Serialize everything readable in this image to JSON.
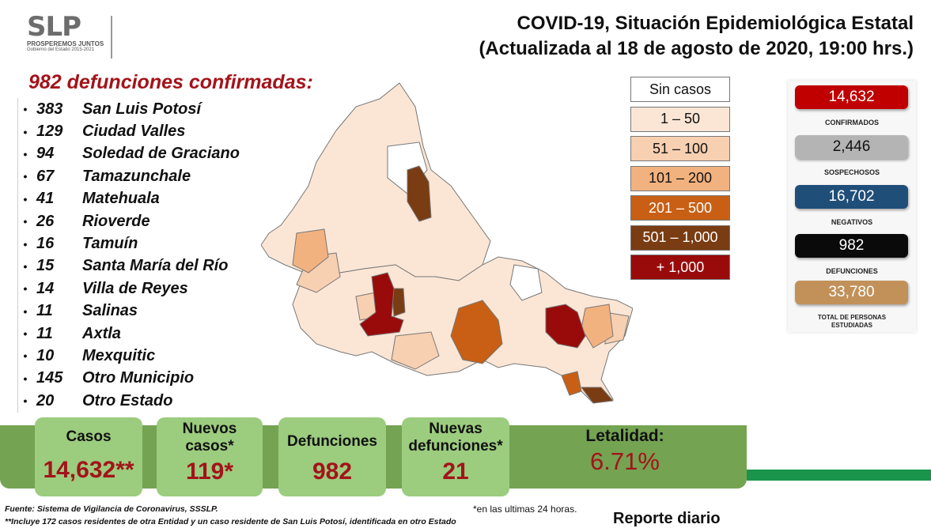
{
  "logo": {
    "mark": "SLP",
    "tagline": "PROSPEREMOS JUNTOS",
    "sub": "Gobierno del Estado 2015-2021"
  },
  "title": {
    "line1": "COVID-19, Situación Epidemiológica Estatal",
    "line2": "(Actualizada al 18 de agosto de 2020, 19:00 hrs.)"
  },
  "deaths_heading": "982 defunciones confirmadas:",
  "deaths_list": [
    {
      "num": "383",
      "name": "San Luis Potosí"
    },
    {
      "num": "129",
      "name": "Ciudad Valles"
    },
    {
      "num": "94",
      "name": "Soledad de Graciano"
    },
    {
      "num": "67",
      "name": "Tamazunchale"
    },
    {
      "num": "41",
      "name": "Matehuala"
    },
    {
      "num": "26",
      "name": "Rioverde"
    },
    {
      "num": "16",
      "name": "Tamuín"
    },
    {
      "num": "15",
      "name": "Santa María del Río"
    },
    {
      "num": "14",
      "name": "Villa de Reyes"
    },
    {
      "num": "11",
      "name": "Salinas"
    },
    {
      "num": "11",
      "name": "Axtla"
    },
    {
      "num": "10",
      "name": "Mexquitic"
    },
    {
      "num": "145",
      "name": "Otro Municipio"
    },
    {
      "num": "20",
      "name": "Otro Estado"
    }
  ],
  "legend": [
    {
      "label": "Sin casos",
      "bg": "#ffffff",
      "fg": "#111111"
    },
    {
      "label": "1 – 50",
      "bg": "#fbe6d6",
      "fg": "#111111"
    },
    {
      "label": "51 – 100",
      "bg": "#f7cfb1",
      "fg": "#111111"
    },
    {
      "label": "101 – 200",
      "bg": "#f2b27f",
      "fg": "#111111"
    },
    {
      "label": "201 – 500",
      "bg": "#c85f14",
      "fg": "#ffffff"
    },
    {
      "label": "501 – 1,000",
      "bg": "#7a3c12",
      "fg": "#ffffff"
    },
    {
      "label": "+ 1,000",
      "bg": "#990b0b",
      "fg": "#ffffff"
    }
  ],
  "stats": [
    {
      "value": "14,632",
      "label": "CONFIRMADOS",
      "color": "#c00000"
    },
    {
      "value": "2,446",
      "label": "SOSPECHOSOS",
      "color": "#b4b4b4"
    },
    {
      "value": "16,702",
      "label": "NEGATIVOS",
      "color": "#1f4e79"
    },
    {
      "value": "982",
      "label": "DEFUNCIONES",
      "color": "#0a0a0a"
    },
    {
      "value": "33,780",
      "label": "TOTAL DE PERSONAS ESTUDIADAS",
      "color": "#c2915a"
    }
  ],
  "cards": {
    "casos": {
      "label": "Casos",
      "value": "14,632**"
    },
    "nuevos_casos": {
      "label": "Nuevos casos*",
      "value": "119*"
    },
    "defunciones": {
      "label": "Defunciones",
      "value": "982"
    },
    "nuevas_defunciones": {
      "label": "Nuevas defunciones*",
      "value": "21"
    },
    "letalidad": {
      "label": "Letalidad:",
      "value": "6.71%"
    }
  },
  "footnotes": {
    "source": "Fuente: Sistema de Vigilancia de Coronavirus, SSSLP.",
    "note": "**Incluye 172 casos residentes de otra Entidad y un caso residente de San Luis Potosí, identificada en otro Estado",
    "last24": "*en las ultimas 24 horas."
  },
  "report_label": "Reporte diario",
  "colors": {
    "accent_red": "#a3131a",
    "band_green": "#74a352",
    "card_green": "#9ccc7e"
  }
}
